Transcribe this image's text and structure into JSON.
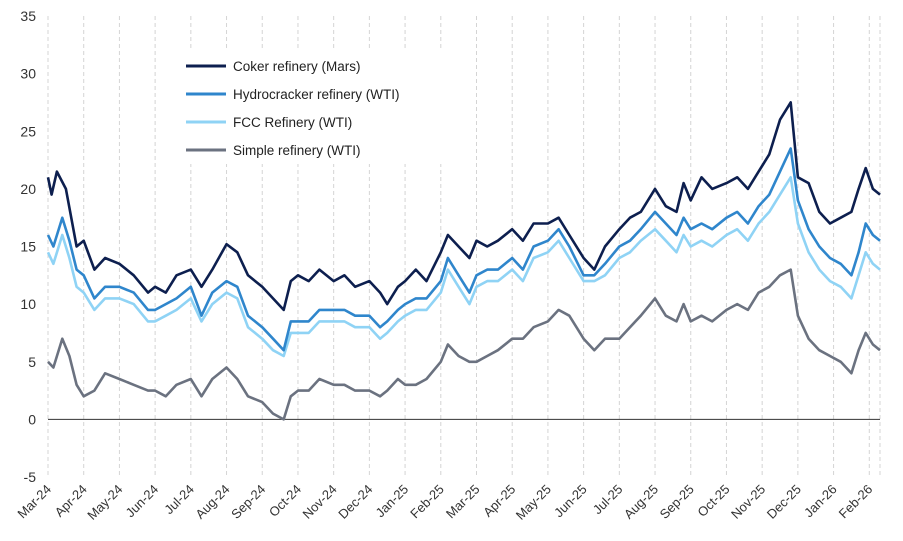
{
  "chart_data": {
    "type": "line",
    "title": "",
    "xlabel": "",
    "ylabel": "",
    "ylim": [
      -5,
      35
    ],
    "yticks": [
      "35",
      "30",
      "25",
      "20",
      "15",
      "10",
      "5",
      "0",
      "-5"
    ],
    "grid": "vertical dashed gridlines at month boundaries",
    "legend_position": "top-left",
    "categories": [
      "Mar-24",
      "Apr-24",
      "May-24",
      "Jun-24",
      "Jul-24",
      "Aug-24",
      "Sep-24",
      "Oct-24",
      "Nov-24",
      "Dec-24",
      "Jan-25",
      "Feb-25",
      "Mar-25",
      "Apr-25",
      "May-25",
      "Jun-25",
      "Jul-25",
      "Aug-25",
      "Sep-25",
      "Oct-25",
      "Nov-25",
      "Dec-25",
      "Jan-26",
      "Feb-26"
    ],
    "series": [
      {
        "name": "Coker refinery (Mars)",
        "color": "#0d1f4f",
        "points": [
          [
            0,
            21
          ],
          [
            0.1,
            19.5
          ],
          [
            0.25,
            21.5
          ],
          [
            0.5,
            20
          ],
          [
            0.8,
            15
          ],
          [
            1.0,
            15.5
          ],
          [
            1.3,
            13
          ],
          [
            1.6,
            14
          ],
          [
            2.0,
            13.5
          ],
          [
            2.4,
            12.5
          ],
          [
            2.8,
            11
          ],
          [
            3.0,
            11.5
          ],
          [
            3.3,
            11
          ],
          [
            3.6,
            12.5
          ],
          [
            4.0,
            13
          ],
          [
            4.3,
            11.5
          ],
          [
            4.6,
            13
          ],
          [
            5.0,
            15.2
          ],
          [
            5.3,
            14.5
          ],
          [
            5.6,
            12.5
          ],
          [
            6.0,
            11.5
          ],
          [
            6.3,
            10.5
          ],
          [
            6.6,
            9.5
          ],
          [
            6.8,
            12
          ],
          [
            7.0,
            12.5
          ],
          [
            7.3,
            12
          ],
          [
            7.6,
            13
          ],
          [
            8.0,
            12
          ],
          [
            8.3,
            12.5
          ],
          [
            8.6,
            11.5
          ],
          [
            9.0,
            12
          ],
          [
            9.3,
            11
          ],
          [
            9.5,
            10
          ],
          [
            9.8,
            11.5
          ],
          [
            10.0,
            12
          ],
          [
            10.3,
            13
          ],
          [
            10.6,
            12
          ],
          [
            11.0,
            14.5
          ],
          [
            11.2,
            16
          ],
          [
            11.5,
            15
          ],
          [
            11.8,
            14
          ],
          [
            12.0,
            15.5
          ],
          [
            12.3,
            15
          ],
          [
            12.6,
            15.5
          ],
          [
            13.0,
            16.5
          ],
          [
            13.3,
            15.5
          ],
          [
            13.6,
            17
          ],
          [
            14.0,
            17
          ],
          [
            14.3,
            17.5
          ],
          [
            14.6,
            16
          ],
          [
            15.0,
            14
          ],
          [
            15.3,
            13
          ],
          [
            15.6,
            15
          ],
          [
            16.0,
            16.5
          ],
          [
            16.3,
            17.5
          ],
          [
            16.6,
            18
          ],
          [
            17.0,
            20
          ],
          [
            17.3,
            18.5
          ],
          [
            17.6,
            18
          ],
          [
            17.8,
            20.5
          ],
          [
            18.0,
            19
          ],
          [
            18.3,
            21
          ],
          [
            18.6,
            20
          ],
          [
            19.0,
            20.5
          ],
          [
            19.3,
            21
          ],
          [
            19.6,
            20
          ],
          [
            19.9,
            21.5
          ],
          [
            20.2,
            23
          ],
          [
            20.5,
            26
          ],
          [
            20.8,
            27.5
          ],
          [
            21.0,
            21
          ],
          [
            21.3,
            20.5
          ],
          [
            21.6,
            18
          ],
          [
            21.9,
            17
          ],
          [
            22.2,
            17.5
          ],
          [
            22.5,
            18
          ],
          [
            22.7,
            20
          ],
          [
            22.9,
            21.8
          ],
          [
            23.1,
            20
          ],
          [
            23.3,
            19.5
          ]
        ]
      },
      {
        "name": "Hydrocracker refinery (WTI)",
        "color": "#2f86cc",
        "points": [
          [
            0,
            16
          ],
          [
            0.15,
            15
          ],
          [
            0.4,
            17.5
          ],
          [
            0.6,
            15.5
          ],
          [
            0.8,
            13
          ],
          [
            1.0,
            12.5
          ],
          [
            1.3,
            10.5
          ],
          [
            1.6,
            11.5
          ],
          [
            2.0,
            11.5
          ],
          [
            2.4,
            11
          ],
          [
            2.8,
            9.5
          ],
          [
            3.0,
            9.5
          ],
          [
            3.3,
            10
          ],
          [
            3.6,
            10.5
          ],
          [
            4.0,
            11.5
          ],
          [
            4.3,
            9
          ],
          [
            4.6,
            11
          ],
          [
            5.0,
            12
          ],
          [
            5.3,
            11.5
          ],
          [
            5.6,
            9
          ],
          [
            6.0,
            8
          ],
          [
            6.3,
            7
          ],
          [
            6.6,
            6
          ],
          [
            6.8,
            8.5
          ],
          [
            7.0,
            8.5
          ],
          [
            7.3,
            8.5
          ],
          [
            7.6,
            9.5
          ],
          [
            8.0,
            9.5
          ],
          [
            8.3,
            9.5
          ],
          [
            8.6,
            9
          ],
          [
            9.0,
            9
          ],
          [
            9.3,
            8
          ],
          [
            9.5,
            8.5
          ],
          [
            9.8,
            9.5
          ],
          [
            10.0,
            10
          ],
          [
            10.3,
            10.5
          ],
          [
            10.6,
            10.5
          ],
          [
            11.0,
            12
          ],
          [
            11.2,
            14
          ],
          [
            11.5,
            12.5
          ],
          [
            11.8,
            11
          ],
          [
            12.0,
            12.5
          ],
          [
            12.3,
            13
          ],
          [
            12.6,
            13
          ],
          [
            13.0,
            14
          ],
          [
            13.3,
            13
          ],
          [
            13.6,
            15
          ],
          [
            14.0,
            15.5
          ],
          [
            14.3,
            16.5
          ],
          [
            14.6,
            15
          ],
          [
            15.0,
            12.5
          ],
          [
            15.3,
            12.5
          ],
          [
            15.6,
            13.5
          ],
          [
            16.0,
            15
          ],
          [
            16.3,
            15.5
          ],
          [
            16.6,
            16.5
          ],
          [
            17.0,
            18
          ],
          [
            17.3,
            17
          ],
          [
            17.6,
            16
          ],
          [
            17.8,
            17.5
          ],
          [
            18.0,
            16.5
          ],
          [
            18.3,
            17
          ],
          [
            18.6,
            16.5
          ],
          [
            19.0,
            17.5
          ],
          [
            19.3,
            18
          ],
          [
            19.6,
            17
          ],
          [
            19.9,
            18.5
          ],
          [
            20.2,
            19.5
          ],
          [
            20.5,
            21.5
          ],
          [
            20.8,
            23.5
          ],
          [
            21.0,
            19
          ],
          [
            21.3,
            16.5
          ],
          [
            21.6,
            15
          ],
          [
            21.9,
            14
          ],
          [
            22.2,
            13.5
          ],
          [
            22.5,
            12.5
          ],
          [
            22.7,
            14.5
          ],
          [
            22.9,
            17
          ],
          [
            23.1,
            16
          ],
          [
            23.3,
            15.5
          ]
        ]
      },
      {
        "name": "FCC Refinery (WTI)",
        "color": "#8fd3f5",
        "points": [
          [
            0,
            14.5
          ],
          [
            0.15,
            13.5
          ],
          [
            0.4,
            16
          ],
          [
            0.6,
            14
          ],
          [
            0.8,
            11.5
          ],
          [
            1.0,
            11
          ],
          [
            1.3,
            9.5
          ],
          [
            1.6,
            10.5
          ],
          [
            2.0,
            10.5
          ],
          [
            2.4,
            10
          ],
          [
            2.8,
            8.5
          ],
          [
            3.0,
            8.5
          ],
          [
            3.3,
            9
          ],
          [
            3.6,
            9.5
          ],
          [
            4.0,
            10.5
          ],
          [
            4.3,
            8.5
          ],
          [
            4.6,
            10
          ],
          [
            5.0,
            11
          ],
          [
            5.3,
            10.5
          ],
          [
            5.6,
            8
          ],
          [
            6.0,
            7
          ],
          [
            6.3,
            6
          ],
          [
            6.6,
            5.5
          ],
          [
            6.8,
            7.5
          ],
          [
            7.0,
            7.5
          ],
          [
            7.3,
            7.5
          ],
          [
            7.6,
            8.5
          ],
          [
            8.0,
            8.5
          ],
          [
            8.3,
            8.5
          ],
          [
            8.6,
            8
          ],
          [
            9.0,
            8
          ],
          [
            9.3,
            7
          ],
          [
            9.5,
            7.5
          ],
          [
            9.8,
            8.5
          ],
          [
            10.0,
            9
          ],
          [
            10.3,
            9.5
          ],
          [
            10.6,
            9.5
          ],
          [
            11.0,
            11
          ],
          [
            11.2,
            13
          ],
          [
            11.5,
            11.5
          ],
          [
            11.8,
            10
          ],
          [
            12.0,
            11.5
          ],
          [
            12.3,
            12
          ],
          [
            12.6,
            12
          ],
          [
            13.0,
            13
          ],
          [
            13.3,
            12
          ],
          [
            13.6,
            14
          ],
          [
            14.0,
            14.5
          ],
          [
            14.3,
            15.5
          ],
          [
            14.6,
            14
          ],
          [
            15.0,
            12
          ],
          [
            15.3,
            12
          ],
          [
            15.6,
            12.5
          ],
          [
            16.0,
            14
          ],
          [
            16.3,
            14.5
          ],
          [
            16.6,
            15.5
          ],
          [
            17.0,
            16.5
          ],
          [
            17.3,
            15.5
          ],
          [
            17.6,
            14.5
          ],
          [
            17.8,
            16
          ],
          [
            18.0,
            15
          ],
          [
            18.3,
            15.5
          ],
          [
            18.6,
            15
          ],
          [
            19.0,
            16
          ],
          [
            19.3,
            16.5
          ],
          [
            19.6,
            15.5
          ],
          [
            19.9,
            17
          ],
          [
            20.2,
            18
          ],
          [
            20.5,
            19.5
          ],
          [
            20.8,
            21
          ],
          [
            21.0,
            17
          ],
          [
            21.3,
            14.5
          ],
          [
            21.6,
            13
          ],
          [
            21.9,
            12
          ],
          [
            22.2,
            11.5
          ],
          [
            22.5,
            10.5
          ],
          [
            22.7,
            12.5
          ],
          [
            22.9,
            14.5
          ],
          [
            23.1,
            13.5
          ],
          [
            23.3,
            13
          ]
        ]
      },
      {
        "name": "Simple refinery (WTI)",
        "color": "#6b7280",
        "points": [
          [
            0,
            5
          ],
          [
            0.15,
            4.5
          ],
          [
            0.4,
            7
          ],
          [
            0.6,
            5.5
          ],
          [
            0.8,
            3
          ],
          [
            1.0,
            2
          ],
          [
            1.3,
            2.5
          ],
          [
            1.6,
            4
          ],
          [
            2.0,
            3.5
          ],
          [
            2.4,
            3
          ],
          [
            2.8,
            2.5
          ],
          [
            3.0,
            2.5
          ],
          [
            3.3,
            2
          ],
          [
            3.6,
            3
          ],
          [
            4.0,
            3.5
          ],
          [
            4.3,
            2
          ],
          [
            4.6,
            3.5
          ],
          [
            5.0,
            4.5
          ],
          [
            5.3,
            3.5
          ],
          [
            5.6,
            2
          ],
          [
            6.0,
            1.5
          ],
          [
            6.3,
            0.5
          ],
          [
            6.6,
            0
          ],
          [
            6.8,
            2
          ],
          [
            7.0,
            2.5
          ],
          [
            7.3,
            2.5
          ],
          [
            7.6,
            3.5
          ],
          [
            8.0,
            3
          ],
          [
            8.3,
            3
          ],
          [
            8.6,
            2.5
          ],
          [
            9.0,
            2.5
          ],
          [
            9.3,
            2
          ],
          [
            9.5,
            2.5
          ],
          [
            9.8,
            3.5
          ],
          [
            10.0,
            3
          ],
          [
            10.3,
            3
          ],
          [
            10.6,
            3.5
          ],
          [
            11.0,
            5
          ],
          [
            11.2,
            6.5
          ],
          [
            11.5,
            5.5
          ],
          [
            11.8,
            5
          ],
          [
            12.0,
            5
          ],
          [
            12.3,
            5.5
          ],
          [
            12.6,
            6
          ],
          [
            13.0,
            7
          ],
          [
            13.3,
            7
          ],
          [
            13.6,
            8
          ],
          [
            14.0,
            8.5
          ],
          [
            14.3,
            9.5
          ],
          [
            14.6,
            9
          ],
          [
            15.0,
            7
          ],
          [
            15.3,
            6
          ],
          [
            15.6,
            7
          ],
          [
            16.0,
            7
          ],
          [
            16.3,
            8
          ],
          [
            16.6,
            9
          ],
          [
            17.0,
            10.5
          ],
          [
            17.3,
            9
          ],
          [
            17.6,
            8.5
          ],
          [
            17.8,
            10
          ],
          [
            18.0,
            8.5
          ],
          [
            18.3,
            9
          ],
          [
            18.6,
            8.5
          ],
          [
            19.0,
            9.5
          ],
          [
            19.3,
            10
          ],
          [
            19.6,
            9.5
          ],
          [
            19.9,
            11
          ],
          [
            20.2,
            11.5
          ],
          [
            20.5,
            12.5
          ],
          [
            20.8,
            13
          ],
          [
            21.0,
            9
          ],
          [
            21.3,
            7
          ],
          [
            21.6,
            6
          ],
          [
            21.9,
            5.5
          ],
          [
            22.2,
            5
          ],
          [
            22.5,
            4
          ],
          [
            22.7,
            6
          ],
          [
            22.9,
            7.5
          ],
          [
            23.1,
            6.5
          ],
          [
            23.3,
            6
          ]
        ]
      }
    ]
  }
}
